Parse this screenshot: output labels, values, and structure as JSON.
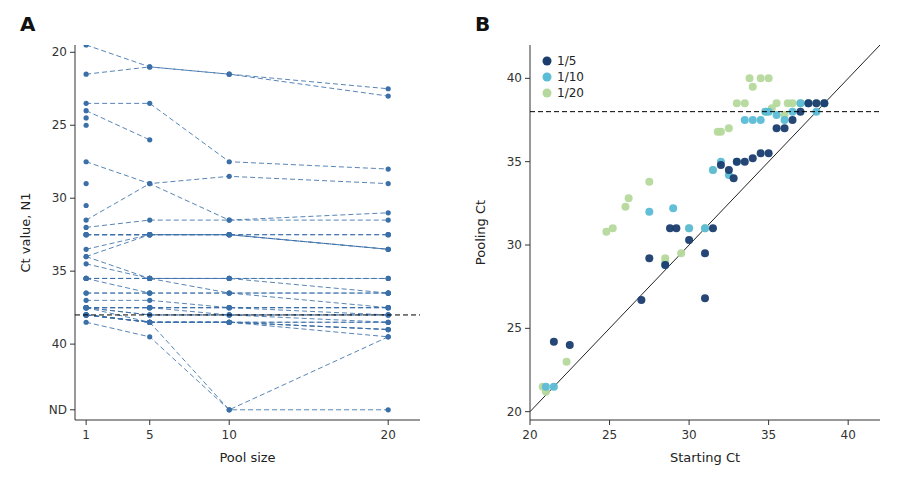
{
  "chart_data": [
    {
      "type": "line",
      "title": "A",
      "xlabel": "Pool size",
      "ylabel": "Ct value, N1",
      "x": [
        1,
        5,
        10,
        20
      ],
      "xlim": [
        0.3,
        22
      ],
      "xticks": [
        1,
        5,
        10,
        20
      ],
      "ylim": [
        45.2,
        19.5
      ],
      "yticks": [
        20,
        25,
        30,
        35,
        40,
        {
          "value": 44.5,
          "label": "ND"
        }
      ],
      "hline": 38,
      "grid": false,
      "color": "#3a6fa8",
      "line_style": "dashed",
      "marker": "circle",
      "series": [
        {
          "values": [
            19.5,
            21.0,
            21.5,
            23.0
          ]
        },
        {
          "values": [
            21.5,
            21.0,
            21.5,
            22.5
          ]
        },
        {
          "values": [
            24.0,
            26.0,
            null,
            null
          ]
        },
        {
          "values": [
            25.0,
            null,
            null,
            null
          ]
        },
        {
          "values": [
            24.5,
            null,
            null,
            null
          ]
        },
        {
          "values": [
            23.5,
            23.5,
            27.5,
            28.0
          ]
        },
        {
          "values": [
            27.5,
            29.0,
            28.5,
            29.0
          ]
        },
        {
          "values": [
            29.0,
            null,
            null,
            null
          ]
        },
        {
          "values": [
            30.5,
            null,
            null,
            null
          ]
        },
        {
          "values": [
            32.0,
            31.5,
            31.5,
            31.5
          ]
        },
        {
          "values": [
            31.5,
            29.0,
            31.5,
            31.0
          ]
        },
        {
          "values": [
            32.5,
            32.5,
            32.5,
            32.5
          ]
        },
        {
          "values": [
            32.5,
            32.5,
            null,
            32.5
          ]
        },
        {
          "values": [
            32.5,
            32.5,
            32.5,
            32.5
          ]
        },
        {
          "values": [
            32.5,
            32.5,
            32.5,
            33.5
          ]
        },
        {
          "values": [
            33.5,
            32.5,
            32.5,
            33.5
          ]
        },
        {
          "values": [
            34.0,
            32.5,
            32.5,
            33.5
          ]
        },
        {
          "values": [
            34.0,
            35.5,
            35.5,
            35.5
          ]
        },
        {
          "values": [
            34.5,
            35.5,
            35.5,
            35.5
          ]
        },
        {
          "values": [
            35.5,
            35.5,
            35.5,
            36.5
          ]
        },
        {
          "values": [
            35.5,
            35.5,
            36.5,
            36.5
          ]
        },
        {
          "values": [
            35.5,
            35.5,
            null,
            36.5
          ]
        },
        {
          "values": [
            35.5,
            36.5,
            null,
            36.5
          ]
        },
        {
          "values": [
            36.5,
            36.5,
            36.5,
            36.5
          ]
        },
        {
          "values": [
            36.5,
            36.5,
            36.5,
            37.5
          ]
        },
        {
          "values": [
            37.0,
            37.0,
            37.5,
            37.5
          ]
        },
        {
          "values": [
            37.5,
            37.5,
            37.5,
            37.5
          ]
        },
        {
          "values": [
            37.5,
            37.5,
            37.5,
            37.5
          ]
        },
        {
          "values": [
            37.5,
            37.5,
            37.5,
            38.0
          ]
        },
        {
          "values": [
            37.5,
            37.5,
            38.0,
            38.0
          ]
        },
        {
          "values": [
            37.5,
            38.0,
            38.0,
            38.0
          ]
        },
        {
          "values": [
            37.5,
            38.0,
            38.0,
            38.5
          ]
        },
        {
          "values": [
            37.5,
            38.5,
            38.5,
            38.5
          ]
        },
        {
          "values": [
            38.0,
            38.5,
            38.5,
            38.5
          ]
        },
        {
          "values": [
            38.0,
            38.5,
            38.5,
            39.0
          ]
        },
        {
          "values": [
            38.0,
            38.5,
            38.5,
            39.0
          ]
        },
        {
          "values": [
            38.0,
            38.5,
            38.5,
            39.0
          ]
        },
        {
          "values": [
            38.0,
            38.5,
            38.5,
            39.5
          ]
        },
        {
          "values": [
            38.0,
            38.5,
            44.5,
            39.5
          ]
        },
        {
          "values": [
            38.5,
            39.5,
            44.5,
            44.5
          ]
        }
      ]
    },
    {
      "type": "scatter",
      "title": "B",
      "xlabel": "Starting Ct",
      "ylabel": "Pooling Ct",
      "xlim": [
        20,
        42
      ],
      "xticks": [
        20,
        25,
        30,
        35,
        40
      ],
      "ylim": [
        19.5,
        42
      ],
      "yticks": [
        20,
        25,
        30,
        35,
        40
      ],
      "hline": 38,
      "diagonal": {
        "x": [
          20,
          42
        ],
        "y": [
          20,
          42
        ]
      },
      "grid": false,
      "legend": "upper left",
      "marker": "circle",
      "series": [
        {
          "name": "1/5",
          "color": "#1a3d6e",
          "x": [
            21.5,
            22.5,
            27.0,
            27.5,
            28.5,
            28.8,
            29.2,
            30.0,
            31.0,
            31.0,
            31.5,
            32.0,
            32.5,
            32.8,
            33.0,
            33.5,
            34.0,
            34.5,
            35.0,
            35.5,
            36.0,
            36.5,
            37.0,
            37.5,
            38.0,
            38.5
          ],
          "values": [
            24.2,
            24.0,
            26.7,
            29.2,
            28.8,
            31.0,
            31.0,
            30.3,
            29.5,
            26.8,
            31.0,
            34.8,
            34.5,
            34.0,
            35.0,
            35.0,
            35.2,
            35.5,
            35.5,
            37.0,
            37.0,
            37.5,
            38.0,
            38.5,
            38.5,
            38.5
          ]
        },
        {
          "name": "1/10",
          "color": "#5bbcd6",
          "x": [
            21.0,
            21.5,
            27.5,
            28.5,
            29.0,
            30.0,
            31.0,
            31.5,
            32.0,
            32.5,
            33.0,
            33.5,
            34.0,
            34.5,
            34.8,
            35.0,
            35.5,
            36.0,
            36.5,
            37.0,
            37.5,
            38.0,
            38.5
          ],
          "values": [
            21.5,
            21.5,
            32.0,
            28.8,
            32.2,
            31.0,
            31.0,
            34.5,
            35.0,
            34.2,
            35.0,
            37.5,
            37.5,
            37.5,
            38.0,
            38.0,
            37.8,
            37.5,
            38.0,
            38.5,
            38.5,
            38.0,
            38.5
          ]
        },
        {
          "name": "1/20",
          "color": "#b5d99c",
          "x": [
            20.8,
            21.0,
            22.3,
            24.8,
            25.2,
            26.0,
            26.2,
            27.5,
            28.5,
            28.5,
            29.5,
            30.0,
            31.0,
            31.5,
            31.8,
            32.0,
            32.5,
            33.0,
            33.5,
            33.8,
            34.0,
            34.5,
            34.8,
            35.0,
            35.2,
            35.5,
            36.0,
            36.2,
            36.5,
            37.0,
            37.5,
            38.0,
            38.5
          ],
          "values": [
            21.5,
            21.2,
            23.0,
            30.8,
            31.0,
            32.3,
            32.8,
            33.8,
            29.2,
            29.0,
            29.5,
            31.0,
            31.0,
            34.5,
            36.8,
            36.8,
            37.0,
            38.5,
            38.5,
            40.0,
            39.5,
            40.0,
            38.0,
            40.0,
            38.2,
            38.5,
            37.8,
            38.5,
            38.5,
            38.5,
            38.5,
            38.5,
            38.5
          ]
        }
      ]
    }
  ]
}
